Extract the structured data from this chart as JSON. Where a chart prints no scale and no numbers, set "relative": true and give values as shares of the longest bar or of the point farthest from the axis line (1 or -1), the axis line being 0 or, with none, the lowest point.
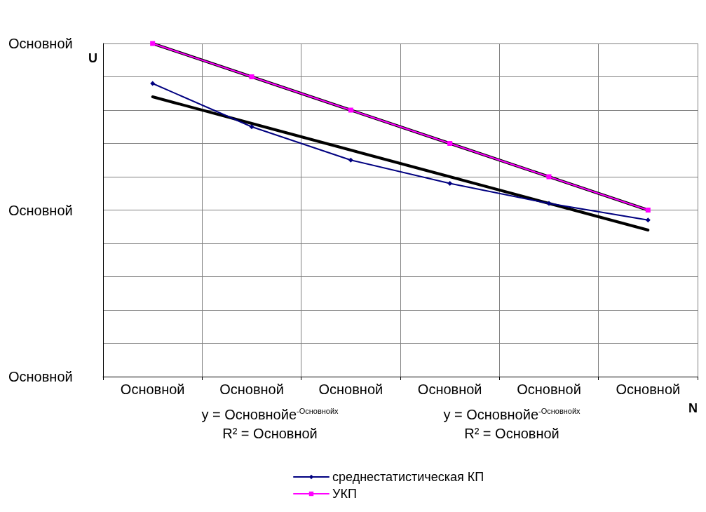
{
  "chart_data": {
    "type": "line",
    "relative": true,
    "xlabel": "N",
    "ylabel": "U",
    "categories": [
      "Основной",
      "Основной",
      "Основной",
      "Основной",
      "Основной",
      "Основной"
    ],
    "series": [
      {
        "name": "среднестатистическая КП",
        "color": "#000080",
        "marker": "diamond",
        "values": [
          0.88,
          0.75,
          0.65,
          0.58,
          0.52,
          0.47
        ]
      },
      {
        "name": "УКП",
        "color": "#ff00ff",
        "marker": "square",
        "values": [
          1.0,
          0.9,
          0.8,
          0.7,
          0.6,
          0.5
        ]
      },
      {
        "color": "#000000",
        "marker": "none",
        "values": [
          0.84,
          0.76,
          0.68,
          0.6,
          0.52,
          0.44
        ]
      },
      {
        "color": "#000000",
        "marker": "none",
        "values": [
          1.0,
          0.9,
          0.8,
          0.7,
          0.6,
          0.5
        ]
      }
    ],
    "annotations": [
      "Основной",
      "Основной",
      "Основной",
      "y = Основнойе$^{-Основнойх}$",
      "R² = Основной",
      "y = Основнойе$^{-Основнойх}$",
      "R² = Основной"
    ],
    "grid": true,
    "legend": "bottom",
    "line_style": "solid"
  }
}
